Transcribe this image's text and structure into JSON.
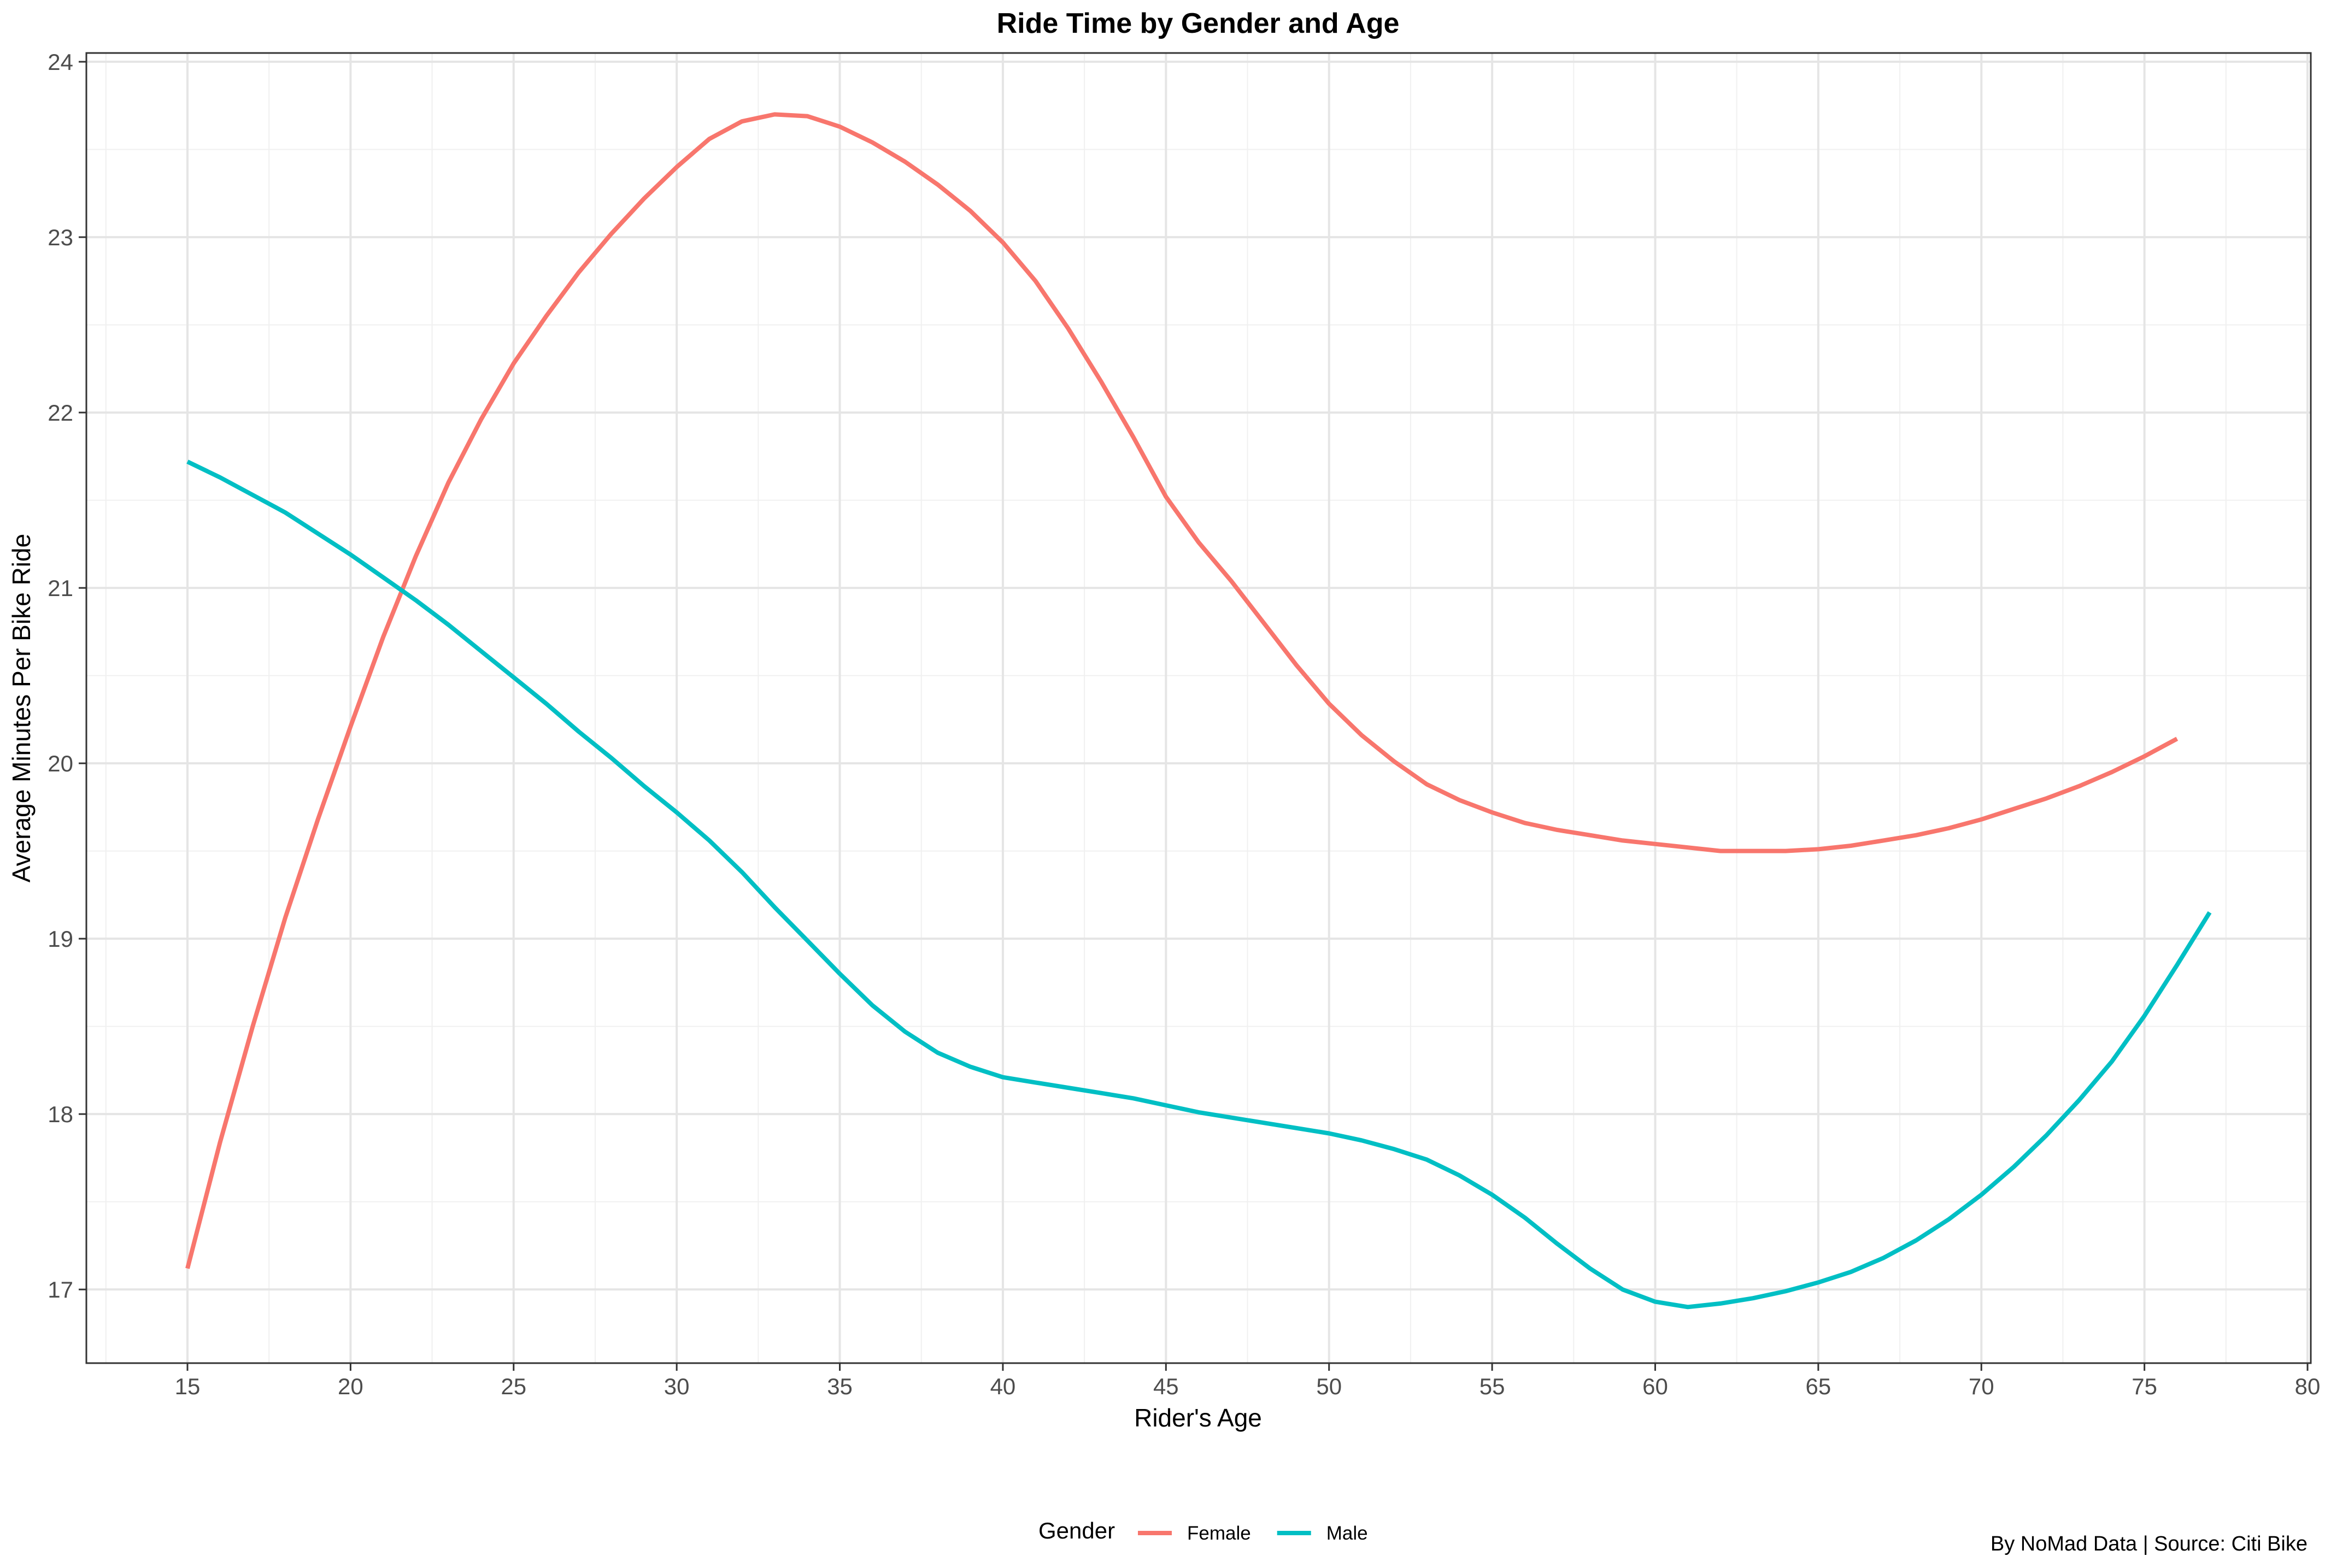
{
  "chart_data": {
    "type": "line",
    "title": "Ride Time by Gender and Age",
    "xlabel": "Rider's Age",
    "ylabel": "Average Minutes Per Bike Ride",
    "caption": "By NoMad Data | Source: Citi Bike",
    "xlim": [
      11.9,
      80.1
    ],
    "ylim": [
      16.58,
      24.05
    ],
    "x_ticks": [
      15,
      20,
      25,
      30,
      35,
      40,
      45,
      50,
      55,
      60,
      65,
      70,
      75,
      80
    ],
    "y_ticks": [
      17,
      18,
      19,
      20,
      21,
      22,
      23,
      24
    ],
    "grid": true,
    "legend": {
      "title": "Gender",
      "position": "bottom"
    },
    "series": [
      {
        "name": "Female",
        "color": "#f8766d",
        "x": [
          15,
          16,
          17,
          18,
          19,
          20,
          21,
          22,
          23,
          24,
          25,
          26,
          27,
          28,
          29,
          30,
          31,
          32,
          33,
          34,
          35,
          36,
          37,
          38,
          39,
          40,
          41,
          42,
          43,
          44,
          45,
          46,
          47,
          48,
          49,
          50,
          51,
          52,
          53,
          54,
          55,
          56,
          57,
          58,
          59,
          60,
          61,
          62,
          63,
          64,
          65,
          66,
          67,
          68,
          69,
          70,
          71,
          72,
          73,
          74,
          75,
          76
        ],
        "values": [
          17.12,
          17.84,
          18.5,
          19.12,
          19.68,
          20.21,
          20.72,
          21.18,
          21.6,
          21.96,
          22.28,
          22.55,
          22.8,
          23.02,
          23.22,
          23.4,
          23.56,
          23.66,
          23.7,
          23.69,
          23.63,
          23.54,
          23.43,
          23.3,
          23.15,
          22.97,
          22.75,
          22.48,
          22.18,
          21.86,
          21.52,
          21.26,
          21.04,
          20.8,
          20.56,
          20.34,
          20.16,
          20.01,
          19.88,
          19.79,
          19.72,
          19.66,
          19.62,
          19.59,
          19.56,
          19.54,
          19.52,
          19.5,
          19.5,
          19.5,
          19.51,
          19.53,
          19.56,
          19.59,
          19.63,
          19.68,
          19.74,
          19.8,
          19.87,
          19.95,
          20.04,
          20.14
        ]
      },
      {
        "name": "Male",
        "color": "#00bfc4",
        "x": [
          15,
          16,
          17,
          18,
          19,
          20,
          21,
          22,
          23,
          24,
          25,
          26,
          27,
          28,
          29,
          30,
          31,
          32,
          33,
          34,
          35,
          36,
          37,
          38,
          39,
          40,
          41,
          42,
          43,
          44,
          45,
          46,
          47,
          48,
          49,
          50,
          51,
          52,
          53,
          54,
          55,
          56,
          57,
          58,
          59,
          60,
          61,
          62,
          63,
          64,
          65,
          66,
          67,
          68,
          69,
          70,
          71,
          72,
          73,
          74,
          75,
          76,
          77
        ],
        "values": [
          21.72,
          21.63,
          21.53,
          21.43,
          21.31,
          21.19,
          21.06,
          20.93,
          20.79,
          20.64,
          20.49,
          20.34,
          20.18,
          20.03,
          19.87,
          19.72,
          19.56,
          19.38,
          19.18,
          18.99,
          18.8,
          18.62,
          18.47,
          18.35,
          18.27,
          18.21,
          18.18,
          18.15,
          18.12,
          18.09,
          18.05,
          18.01,
          17.98,
          17.95,
          17.92,
          17.89,
          17.85,
          17.8,
          17.74,
          17.65,
          17.54,
          17.41,
          17.26,
          17.12,
          17.0,
          16.93,
          16.9,
          16.92,
          16.95,
          16.99,
          17.04,
          17.1,
          17.18,
          17.28,
          17.4,
          17.54,
          17.7,
          17.88,
          18.08,
          18.3,
          18.56,
          18.85,
          19.15
        ]
      }
    ]
  }
}
